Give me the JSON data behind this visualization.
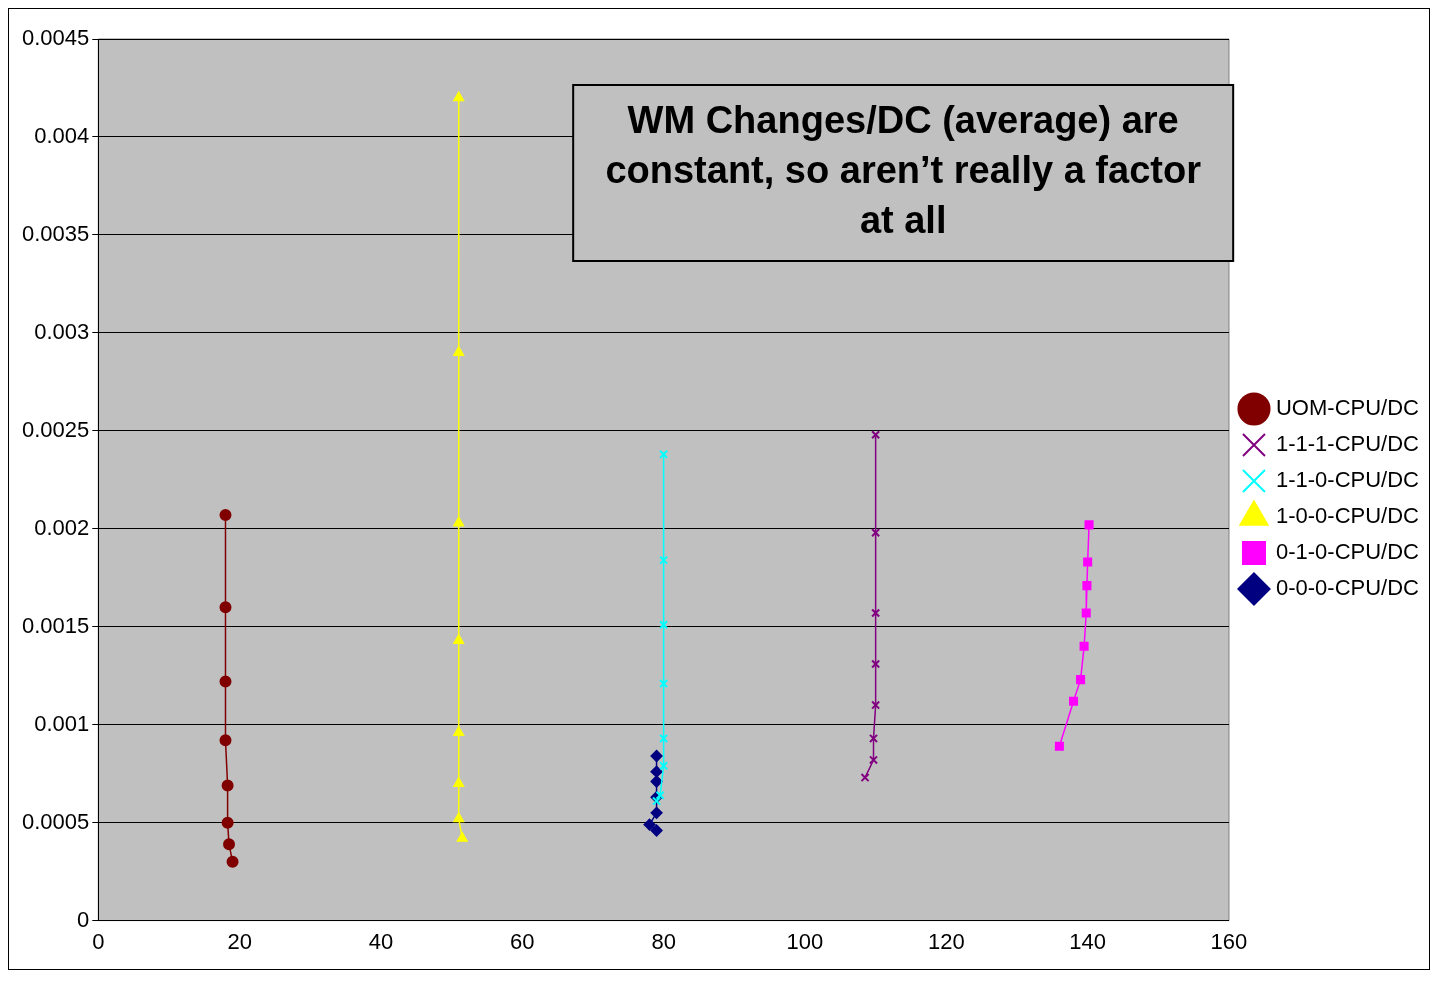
{
  "chart_data": {
    "type": "line",
    "annotations": [
      "WM Changes/DC (average) are constant, so aren’t really a factor at all"
    ],
    "xlim": [
      0,
      160
    ],
    "xticks": [
      0,
      20,
      40,
      60,
      80,
      100,
      120,
      140,
      160
    ],
    "ylim": [
      0,
      0.0045
    ],
    "yticks": [
      0,
      0.0005,
      0.001,
      0.0015,
      0.002,
      0.0025,
      0.003,
      0.0035,
      0.004,
      0.0045
    ],
    "grid": "y",
    "legend": "right",
    "line_style": "solid",
    "series": [
      {
        "name": "0-0-0-CPU/DC",
        "color": "#000080",
        "marker": "diamond",
        "x": [
          79,
          79,
          79,
          79,
          79,
          78,
          79
        ],
        "values": [
          0.00084,
          0.00076,
          0.00071,
          0.00063,
          0.00055,
          0.00049,
          0.00046
        ]
      },
      {
        "name": "0-1-0-CPU/DC",
        "color": "#ff00ff",
        "marker": "square",
        "x": [
          140.2,
          140,
          139.9,
          139.8,
          139.5,
          139,
          138,
          136
        ],
        "values": [
          0.00202,
          0.00183,
          0.00171,
          0.00157,
          0.0014,
          0.00123,
          0.00112,
          0.00089
        ]
      },
      {
        "name": "1-0-0-CPU/DC",
        "color": "#ffff00",
        "marker": "triangle",
        "x": [
          51,
          51,
          51,
          51,
          51,
          51,
          51,
          51.5
        ],
        "values": [
          0.0042,
          0.0029,
          0.00203,
          0.00143,
          0.00096,
          0.0007,
          0.00052,
          0.00042
        ]
      },
      {
        "name": "1-1-0-CPU/DC",
        "color": "#00ffff",
        "marker": "cross",
        "x": [
          80,
          80,
          80,
          80,
          80,
          80,
          79.5,
          79
        ],
        "values": [
          0.00238,
          0.00184,
          0.00151,
          0.00121,
          0.00093,
          0.00079,
          0.00064,
          0.00061
        ]
      },
      {
        "name": "1-1-1-CPU/DC",
        "color": "#800080",
        "marker": "cross",
        "x": [
          110,
          110,
          110,
          110,
          110,
          109.7,
          109.7,
          108.5
        ],
        "values": [
          0.00248,
          0.00198,
          0.00157,
          0.00131,
          0.0011,
          0.00093,
          0.00082,
          0.00073
        ]
      },
      {
        "name": "UOM-CPU/DC",
        "color": "#800000",
        "marker": "circle",
        "x": [
          18,
          18,
          18,
          18,
          18.3,
          18.3,
          18.5,
          19
        ],
        "values": [
          0.00207,
          0.0016,
          0.00122,
          0.00092,
          0.00069,
          0.0005,
          0.00039,
          0.0003
        ]
      }
    ]
  }
}
